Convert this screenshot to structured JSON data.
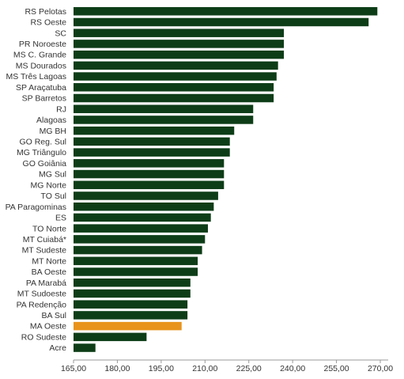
{
  "chart_data": {
    "type": "bar",
    "orientation": "horizontal",
    "categories": [
      "RS Pelotas",
      "RS Oeste",
      "SC",
      "PR Noroeste",
      "MS C. Grande",
      "MS Dourados",
      "MS Três Lagoas",
      "SP Araçatuba",
      "SP Barretos",
      "RJ",
      "Alagoas",
      "MG BH",
      "GO Reg. Sul",
      "MG Triângulo",
      "GO Goiânia",
      "MG Sul",
      "MG Norte",
      "TO Sul",
      "PA Paragominas",
      "ES",
      "TO Norte",
      "MT Cuiabá*",
      "MT Sudeste",
      "MT Norte",
      "BA Oeste",
      "PA Marabá",
      "MT Sudoeste",
      "PA Redenção",
      "BA Sul",
      "MA Oeste",
      "RO Sudeste",
      "Acre"
    ],
    "values": [
      269,
      266,
      237,
      237,
      237,
      235,
      234.5,
      233.5,
      233.5,
      226.5,
      226.5,
      220,
      218.5,
      218.5,
      216.5,
      216.5,
      216.5,
      214.5,
      213,
      212,
      211,
      210,
      209,
      207.5,
      207.5,
      205,
      205,
      204,
      204,
      202,
      190,
      172.5
    ],
    "highlight_index": 29,
    "colors": {
      "bar": "#0d3d17",
      "highlight": "#e8931c",
      "axis": "#999999"
    },
    "xlim": [
      165,
      270
    ],
    "xticks": [
      "165,00",
      "180,00",
      "195,00",
      "210,00",
      "225,00",
      "240,00",
      "255,00",
      "270,00"
    ],
    "xtick_values": [
      165,
      180,
      195,
      210,
      225,
      240,
      255,
      270
    ],
    "title": "",
    "xlabel": "",
    "ylabel": "",
    "grid": false,
    "legend": "none"
  }
}
